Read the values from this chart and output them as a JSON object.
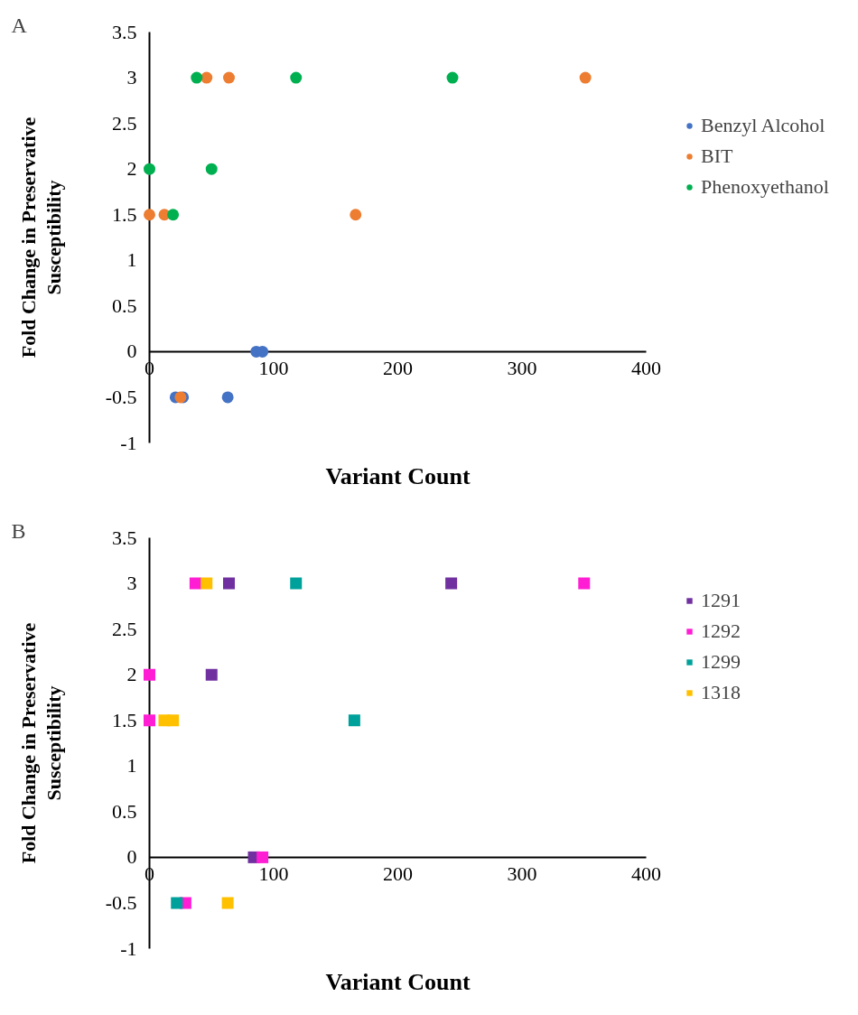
{
  "chart_data": [
    {
      "type": "scatter",
      "annotations": [
        "A"
      ],
      "xlabel": "Variant Count",
      "ylabel": "Fold Change in Preservative\nSusceptibility",
      "marker": "circle",
      "grid": false,
      "legend": "right",
      "xlim": [
        0,
        400
      ],
      "xticks": [
        0,
        100,
        200,
        300,
        400
      ],
      "ylim": [
        -1,
        3.5
      ],
      "yticks": [
        -1,
        -0.5,
        0,
        0.5,
        1,
        1.5,
        2,
        2.5,
        3,
        3.5
      ],
      "series": [
        {
          "name": "Benzyl Alcohol",
          "color": "#4472c4",
          "x": [
            86,
            91,
            21,
            27,
            63
          ],
          "values": [
            0,
            0,
            -0.5,
            -0.5,
            -0.5
          ]
        },
        {
          "name": "BIT",
          "color": "#ed7d31",
          "x": [
            46,
            64,
            351,
            0,
            12,
            166,
            25
          ],
          "values": [
            3,
            3,
            3,
            1.5,
            1.5,
            1.5,
            -0.5
          ]
        },
        {
          "name": "Phenoxyethanol",
          "color": "#00b050",
          "x": [
            38,
            118,
            244,
            0,
            50,
            19
          ],
          "values": [
            3,
            3,
            3,
            2,
            2,
            1.5
          ]
        }
      ]
    },
    {
      "type": "scatter",
      "annotations": [
        "B"
      ],
      "xlabel": "Variant Count",
      "ylabel": "Fold Change in Preservative\nSusceptibility",
      "marker": "square",
      "grid": false,
      "legend": "right",
      "xlim": [
        0,
        400
      ],
      "xticks": [
        0,
        100,
        200,
        300,
        400
      ],
      "ylim": [
        -1,
        3.5
      ],
      "yticks": [
        -1,
        -0.5,
        0,
        0.5,
        1,
        1.5,
        2,
        2.5,
        3,
        3.5
      ],
      "series": [
        {
          "name": "1291",
          "color": "#7030a0",
          "x": [
            64,
            243,
            50,
            84
          ],
          "values": [
            3,
            3,
            2,
            0
          ]
        },
        {
          "name": "1292",
          "color": "#ff1ed4",
          "x": [
            37,
            350,
            0,
            0,
            91,
            29
          ],
          "values": [
            3,
            3,
            2,
            1.5,
            0,
            -0.5
          ]
        },
        {
          "name": "1299",
          "color": "#00a19a",
          "x": [
            118,
            165,
            22
          ],
          "values": [
            3,
            1.5,
            -0.5
          ]
        },
        {
          "name": "1318",
          "color": "#ffc000",
          "x": [
            46,
            12,
            19,
            63
          ],
          "values": [
            3,
            1.5,
            1.5,
            -0.5
          ]
        }
      ]
    }
  ]
}
